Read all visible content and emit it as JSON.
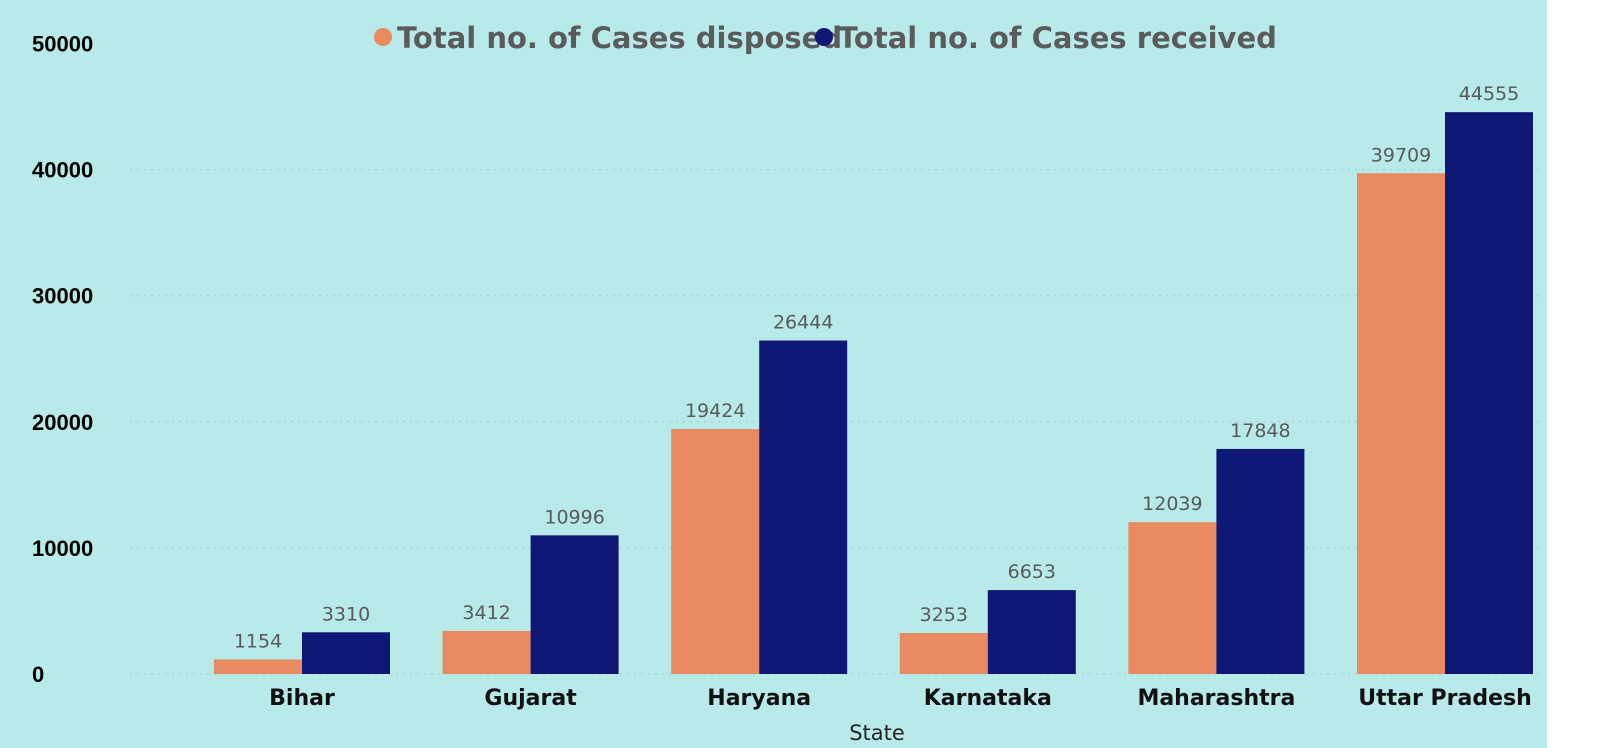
{
  "chart_data": {
    "type": "bar",
    "title": "",
    "xlabel": "State",
    "ylabel": "",
    "categories": [
      "Bihar",
      "Gujarat",
      "Haryana",
      "Karnataka",
      "Maharashtra",
      "Uttar Pradesh"
    ],
    "series": [
      {
        "name": "Total no. of Cases disposed",
        "color": "#e98b61",
        "values": [
          1154,
          3412,
          19424,
          3253,
          12039,
          39709
        ]
      },
      {
        "name": "Total no. of Cases received",
        "color": "#101875",
        "values": [
          3310,
          10996,
          26444,
          6653,
          17848,
          44555
        ]
      }
    ],
    "y_ticks": [
      {
        "value": 0,
        "label": "0"
      },
      {
        "value": 10000,
        "label": "10000"
      },
      {
        "value": 20000,
        "label": "20000"
      },
      {
        "value": 30000,
        "label": "30000"
      },
      {
        "value": 40000,
        "label": "40000"
      },
      {
        "value": 50000,
        "label": "50000"
      }
    ],
    "legend_position": "top",
    "grid": true,
    "background_color": "#b8eaea"
  }
}
